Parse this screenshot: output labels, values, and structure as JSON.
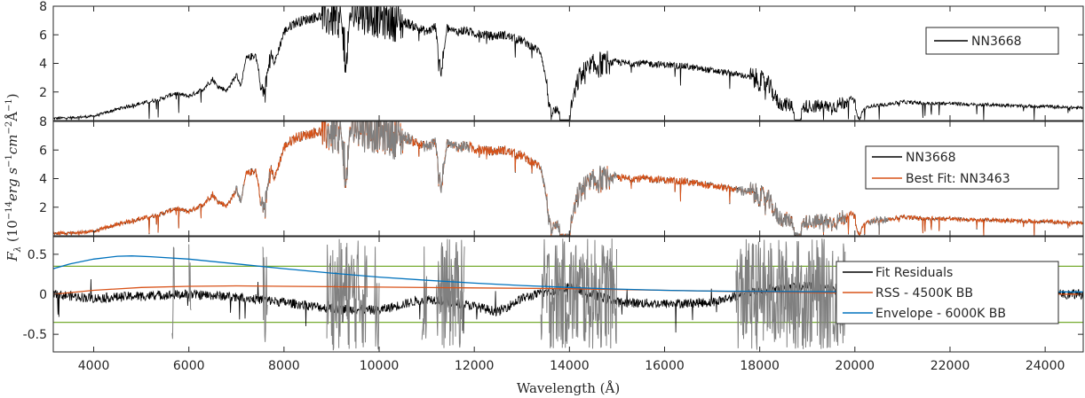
{
  "chart_data": [
    {
      "type": "line",
      "panel": "top",
      "ylim": [
        0,
        8
      ],
      "yticks": [
        2,
        4,
        6,
        8
      ],
      "ytick_labels": [
        "2",
        "4",
        "6",
        "8"
      ],
      "legend": {
        "placement": "top-right",
        "entries": [
          "NN3668"
        ]
      },
      "series": [
        {
          "name": "NN3668",
          "color": "#000000",
          "x": [
            3150,
            3500,
            4000,
            4300,
            4600,
            5000,
            5400,
            5700,
            6000,
            6300,
            6500,
            6600,
            6800,
            7000,
            7100,
            7200,
            7400,
            7500,
            7600,
            7700,
            7800,
            8000,
            8200,
            8400,
            8600,
            8800,
            9000,
            9200,
            9400,
            9600,
            9800,
            10000,
            10200,
            10400,
            10600,
            10800,
            11000,
            11200,
            11300,
            11400,
            11600,
            11800,
            12000,
            12200,
            12400,
            12600,
            12800,
            13000,
            13200,
            13400,
            13500,
            13600,
            13800,
            14000,
            14200,
            14400,
            14600,
            14800,
            15000,
            15200,
            15600,
            16000,
            16400,
            16800,
            17200,
            17600,
            18000,
            18200,
            18400,
            18800,
            19200,
            19600,
            19900,
            20000,
            20100,
            20300,
            20600,
            20800,
            21000,
            21500,
            22000,
            22500,
            23000,
            23500,
            24000,
            24500,
            24800
          ],
          "y": [
            0.15,
            0.2,
            0.3,
            0.6,
            0.9,
            1.2,
            1.5,
            1.9,
            1.7,
            2.2,
            2.9,
            2.4,
            2.1,
            3.2,
            2.4,
            4.3,
            4.6,
            3.0,
            5.8,
            5.0,
            4.0,
            6.2,
            6.8,
            7.0,
            7.2,
            7.3,
            7.2,
            7.1,
            7.5,
            7.6,
            7.4,
            7.2,
            7.0,
            6.9,
            6.8,
            6.5,
            6.2,
            6.6,
            6.3,
            6.5,
            6.2,
            6.3,
            6.1,
            6.0,
            5.9,
            6.0,
            5.8,
            5.6,
            5.2,
            4.8,
            3.0,
            0.5,
            0.8,
            0.5,
            3.0,
            3.6,
            3.9,
            4.0,
            4.1,
            4.0,
            4.0,
            3.9,
            3.8,
            3.6,
            3.4,
            3.2,
            2.8,
            2.4,
            1.2,
            1.0,
            1.0,
            1.0,
            1.5,
            1.8,
            0.6,
            1.0,
            1.1,
            1.2,
            1.3,
            1.2,
            1.2,
            1.1,
            1.1,
            1.0,
            1.0,
            0.9,
            0.9
          ]
        }
      ],
      "absorption_bands": [
        {
          "x": 7600,
          "depth": 4.8
        },
        {
          "x": 9300,
          "depth": 3.5
        },
        {
          "x": 11300,
          "depth": 4.0
        },
        {
          "x": 13900,
          "depth": 5.8
        },
        {
          "x": 18800,
          "depth": 2.6
        },
        {
          "x": 20050,
          "depth": 1.1
        }
      ]
    },
    {
      "type": "line",
      "panel": "middle",
      "ylim": [
        0,
        8
      ],
      "yticks": [
        2,
        4,
        6,
        8
      ],
      "ytick_labels": [
        "2",
        "4",
        "6",
        "8"
      ],
      "legend": {
        "placement": "top-right",
        "entries": [
          "NN3668",
          "Best Fit: NN3463"
        ]
      },
      "series": [
        {
          "name": "NN3668",
          "color": "#000000",
          "shares_shape_with": "top.NN3668"
        },
        {
          "name": "Best Fit: NN3463",
          "color": "#d95319",
          "shares_shape_with": "top.NN3668"
        }
      ],
      "masked_regions_gray": [
        [
          6950,
          7150
        ],
        [
          7500,
          7700
        ],
        [
          8900,
          10700
        ],
        [
          10900,
          11900
        ],
        [
          13400,
          15000
        ],
        [
          17500,
          19800
        ],
        [
          20300,
          20700
        ]
      ],
      "gray_color": "#808080"
    },
    {
      "type": "line",
      "panel": "bottom",
      "ylim": [
        -0.72,
        0.72
      ],
      "yticks": [
        -0.5,
        0,
        0.5
      ],
      "ytick_labels": [
        "-0.5",
        "0",
        "0.5"
      ],
      "xlim": [
        3150,
        24800
      ],
      "xticks": [
        4000,
        6000,
        8000,
        10000,
        12000,
        14000,
        16000,
        18000,
        20000,
        22000,
        24000
      ],
      "xtick_labels": [
        "4000",
        "6000",
        "8000",
        "10000",
        "12000",
        "14000",
        "16000",
        "18000",
        "20000",
        "22000",
        "24000"
      ],
      "xlabel": "Wavelength (Å)",
      "legend": {
        "placement": "bottom-right",
        "entries": [
          "Fit Residuals",
          "RSS - 4500K BB",
          "Envelope - 6000K BB"
        ]
      },
      "series": [
        {
          "name": "Fit Residuals",
          "color": "#000000",
          "x": [
            3150,
            4000,
            5000,
            6000,
            7000,
            8000,
            9000,
            10000,
            11000,
            12000,
            12500,
            13000,
            14000,
            15000,
            16000,
            17000,
            18000,
            19000,
            20000,
            21000,
            22000,
            23000,
            24000,
            24800
          ],
          "y": [
            0,
            -0.05,
            -0.02,
            0.0,
            -0.03,
            -0.1,
            -0.18,
            -0.2,
            -0.05,
            -0.15,
            -0.22,
            -0.05,
            0.1,
            -0.1,
            -0.12,
            -0.1,
            0.05,
            0.1,
            0.02,
            0.0,
            0.0,
            0.0,
            0.0,
            0.0
          ]
        },
        {
          "name": "RSS - 4500K BB",
          "color": "#d95319",
          "x": [
            3150,
            4000,
            5000,
            6000,
            7000,
            8000,
            9000,
            10000,
            12000,
            14000,
            16000,
            18000,
            20000,
            22000,
            24800
          ],
          "y": [
            0.0,
            0.05,
            0.085,
            0.1,
            0.105,
            0.1,
            0.095,
            0.09,
            0.08,
            0.07,
            0.05,
            0.03,
            0.015,
            0.005,
            0.0
          ]
        },
        {
          "name": "Envelope - 6000K BB",
          "color": "#0072bd",
          "x": [
            3150,
            3500,
            4000,
            4500,
            4800,
            5200,
            6000,
            7000,
            8000,
            9000,
            10000,
            11000,
            12000,
            13000,
            14000,
            15000,
            16000,
            17000,
            18000,
            20000,
            22000,
            24800
          ],
          "y": [
            0.32,
            0.38,
            0.44,
            0.475,
            0.48,
            0.47,
            0.44,
            0.38,
            0.32,
            0.265,
            0.215,
            0.175,
            0.14,
            0.11,
            0.085,
            0.065,
            0.05,
            0.04,
            0.035,
            0.03,
            0.03,
            0.03
          ]
        }
      ],
      "hlines": [
        {
          "y": 0.35,
          "color": "#77ac30"
        },
        {
          "y": -0.35,
          "color": "#77ac30"
        }
      ],
      "masked_regions_gray": [
        [
          5650,
          5700
        ],
        [
          6000,
          6050
        ],
        [
          7550,
          7650
        ],
        [
          8900,
          9750
        ],
        [
          9900,
          10000
        ],
        [
          10900,
          11000
        ],
        [
          11200,
          11800
        ],
        [
          13400,
          15000
        ],
        [
          17500,
          19800
        ]
      ],
      "gray_color": "#808080"
    }
  ],
  "ylabel": "F_λ (10^-14 erg s^-1 cm^-2 Å^-1)",
  "ylabel_parts": {
    "f": "F",
    "lambda": "λ",
    "open": " (10",
    "exp1": "−14",
    "erg": "erg s",
    "exp2": "−1",
    "cm": "cm",
    "exp3": "−2",
    "A": "Å",
    "exp4": "−1",
    "close": ")"
  },
  "xlabel_text": "Wavelength (Å)"
}
